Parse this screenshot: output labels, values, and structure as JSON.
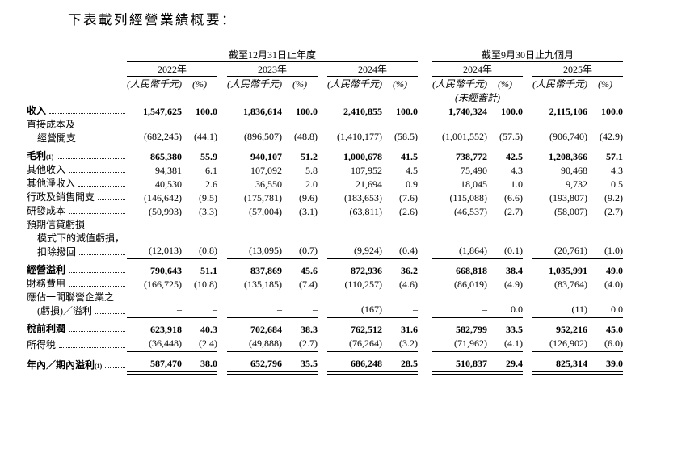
{
  "title": "下表載列經營業績概要：",
  "table": {
    "col_groups": [
      {
        "label": "截至12月31日止年度",
        "years": [
          "2022年",
          "2023年",
          "2024年"
        ]
      },
      {
        "label": "截至9月30日止九個月",
        "years": [
          "2024年",
          "2025年"
        ]
      }
    ],
    "unit_label": "(人民幣千元)",
    "pct_label": "(%)",
    "unaudited_label": "(未經審計)",
    "rows": [
      {
        "lines": [
          {
            "text": "收入",
            "leader": true
          }
        ],
        "bold": true,
        "rule": null,
        "values": [
          "1,547,625",
          "100.0",
          "1,836,614",
          "100.0",
          "2,410,855",
          "100.0",
          "1,740,324",
          "100.0",
          "2,115,106",
          "100.0"
        ]
      },
      {
        "lines": [
          {
            "text": "直接成本及"
          },
          {
            "text": "經營開支",
            "indent": true,
            "leader": true
          }
        ],
        "bold": false,
        "rule": "single",
        "values": [
          "(682,245)",
          "(44.1)",
          "(896,507)",
          "(48.8)",
          "(1,410,177)",
          "(58.5)",
          "(1,001,552)",
          "(57.5)",
          "(906,740)",
          "(42.9)"
        ]
      },
      {
        "lines": [
          {
            "text": "毛利",
            "sup": "(1)",
            "leader": true
          }
        ],
        "bold": true,
        "rule": null,
        "values": [
          "865,380",
          "55.9",
          "940,107",
          "51.2",
          "1,000,678",
          "41.5",
          "738,772",
          "42.5",
          "1,208,366",
          "57.1"
        ]
      },
      {
        "lines": [
          {
            "text": "其他收入",
            "leader": true
          }
        ],
        "bold": false,
        "rule": null,
        "values": [
          "94,381",
          "6.1",
          "107,092",
          "5.8",
          "107,952",
          "4.5",
          "75,490",
          "4.3",
          "90,468",
          "4.3"
        ]
      },
      {
        "lines": [
          {
            "text": "其他淨收入",
            "leader": true
          }
        ],
        "bold": false,
        "rule": null,
        "values": [
          "40,530",
          "2.6",
          "36,550",
          "2.0",
          "21,694",
          "0.9",
          "18,045",
          "1.0",
          "9,732",
          "0.5"
        ]
      },
      {
        "lines": [
          {
            "text": "行政及銷售開支",
            "leader": true
          }
        ],
        "bold": false,
        "rule": null,
        "values": [
          "(146,642)",
          "(9.5)",
          "(175,781)",
          "(9.6)",
          "(183,653)",
          "(7.6)",
          "(115,088)",
          "(6.6)",
          "(193,807)",
          "(9.2)"
        ]
      },
      {
        "lines": [
          {
            "text": "研發成本",
            "leader": true
          }
        ],
        "bold": false,
        "rule": null,
        "values": [
          "(50,993)",
          "(3.3)",
          "(57,004)",
          "(3.1)",
          "(63,811)",
          "(2.6)",
          "(46,537)",
          "(2.7)",
          "(58,007)",
          "(2.7)"
        ]
      },
      {
        "lines": [
          {
            "text": "預期信貸虧損"
          },
          {
            "text": "模式下的減值虧損，",
            "indent": true
          },
          {
            "text": "扣除撥回",
            "indent": true,
            "leader": true
          }
        ],
        "bold": false,
        "rule": "single",
        "values": [
          "(12,013)",
          "(0.8)",
          "(13,095)",
          "(0.7)",
          "(9,924)",
          "(0.4)",
          "(1,864)",
          "(0.1)",
          "(20,761)",
          "(1.0)"
        ]
      },
      {
        "lines": [
          {
            "text": "經營溢利",
            "leader": true
          }
        ],
        "bold": true,
        "rule": null,
        "values": [
          "790,643",
          "51.1",
          "837,869",
          "45.6",
          "872,936",
          "36.2",
          "668,818",
          "38.4",
          "1,035,991",
          "49.0"
        ]
      },
      {
        "lines": [
          {
            "text": "財務費用",
            "leader": true
          }
        ],
        "bold": false,
        "rule": null,
        "values": [
          "(166,725)",
          "(10.8)",
          "(135,185)",
          "(7.4)",
          "(110,257)",
          "(4.6)",
          "(86,019)",
          "(4.9)",
          "(83,764)",
          "(4.0)"
        ]
      },
      {
        "lines": [
          {
            "text": "應佔一間聯營企業之"
          },
          {
            "text": "(虧損)／溢利",
            "indent": true,
            "leader": true
          }
        ],
        "bold": false,
        "rule": "single",
        "values": [
          "–",
          "–",
          "–",
          "–",
          "(167)",
          "–",
          "–",
          "0.0",
          "(11)",
          "0.0"
        ]
      },
      {
        "lines": [
          {
            "text": "稅前利潤",
            "leader": true
          }
        ],
        "bold": true,
        "rule": null,
        "values": [
          "623,918",
          "40.3",
          "702,684",
          "38.3",
          "762,512",
          "31.6",
          "582,799",
          "33.5",
          "952,216",
          "45.0"
        ]
      },
      {
        "lines": [
          {
            "text": "所得稅 ",
            "leader": true
          }
        ],
        "bold": false,
        "rule": "single",
        "values": [
          "(36,448)",
          "(2.4)",
          "(49,888)",
          "(2.7)",
          "(76,264)",
          "(3.2)",
          "(71,962)",
          "(4.1)",
          "(126,902)",
          "(6.0)"
        ]
      },
      {
        "lines": [
          {
            "text": "年內／期內溢利",
            "sup": "(1)",
            "leader": true
          }
        ],
        "bold": true,
        "rule": "double",
        "values": [
          "587,470",
          "38.0",
          "652,796",
          "35.5",
          "686,248",
          "28.5",
          "510,837",
          "29.4",
          "825,314",
          "39.0"
        ]
      }
    ]
  }
}
